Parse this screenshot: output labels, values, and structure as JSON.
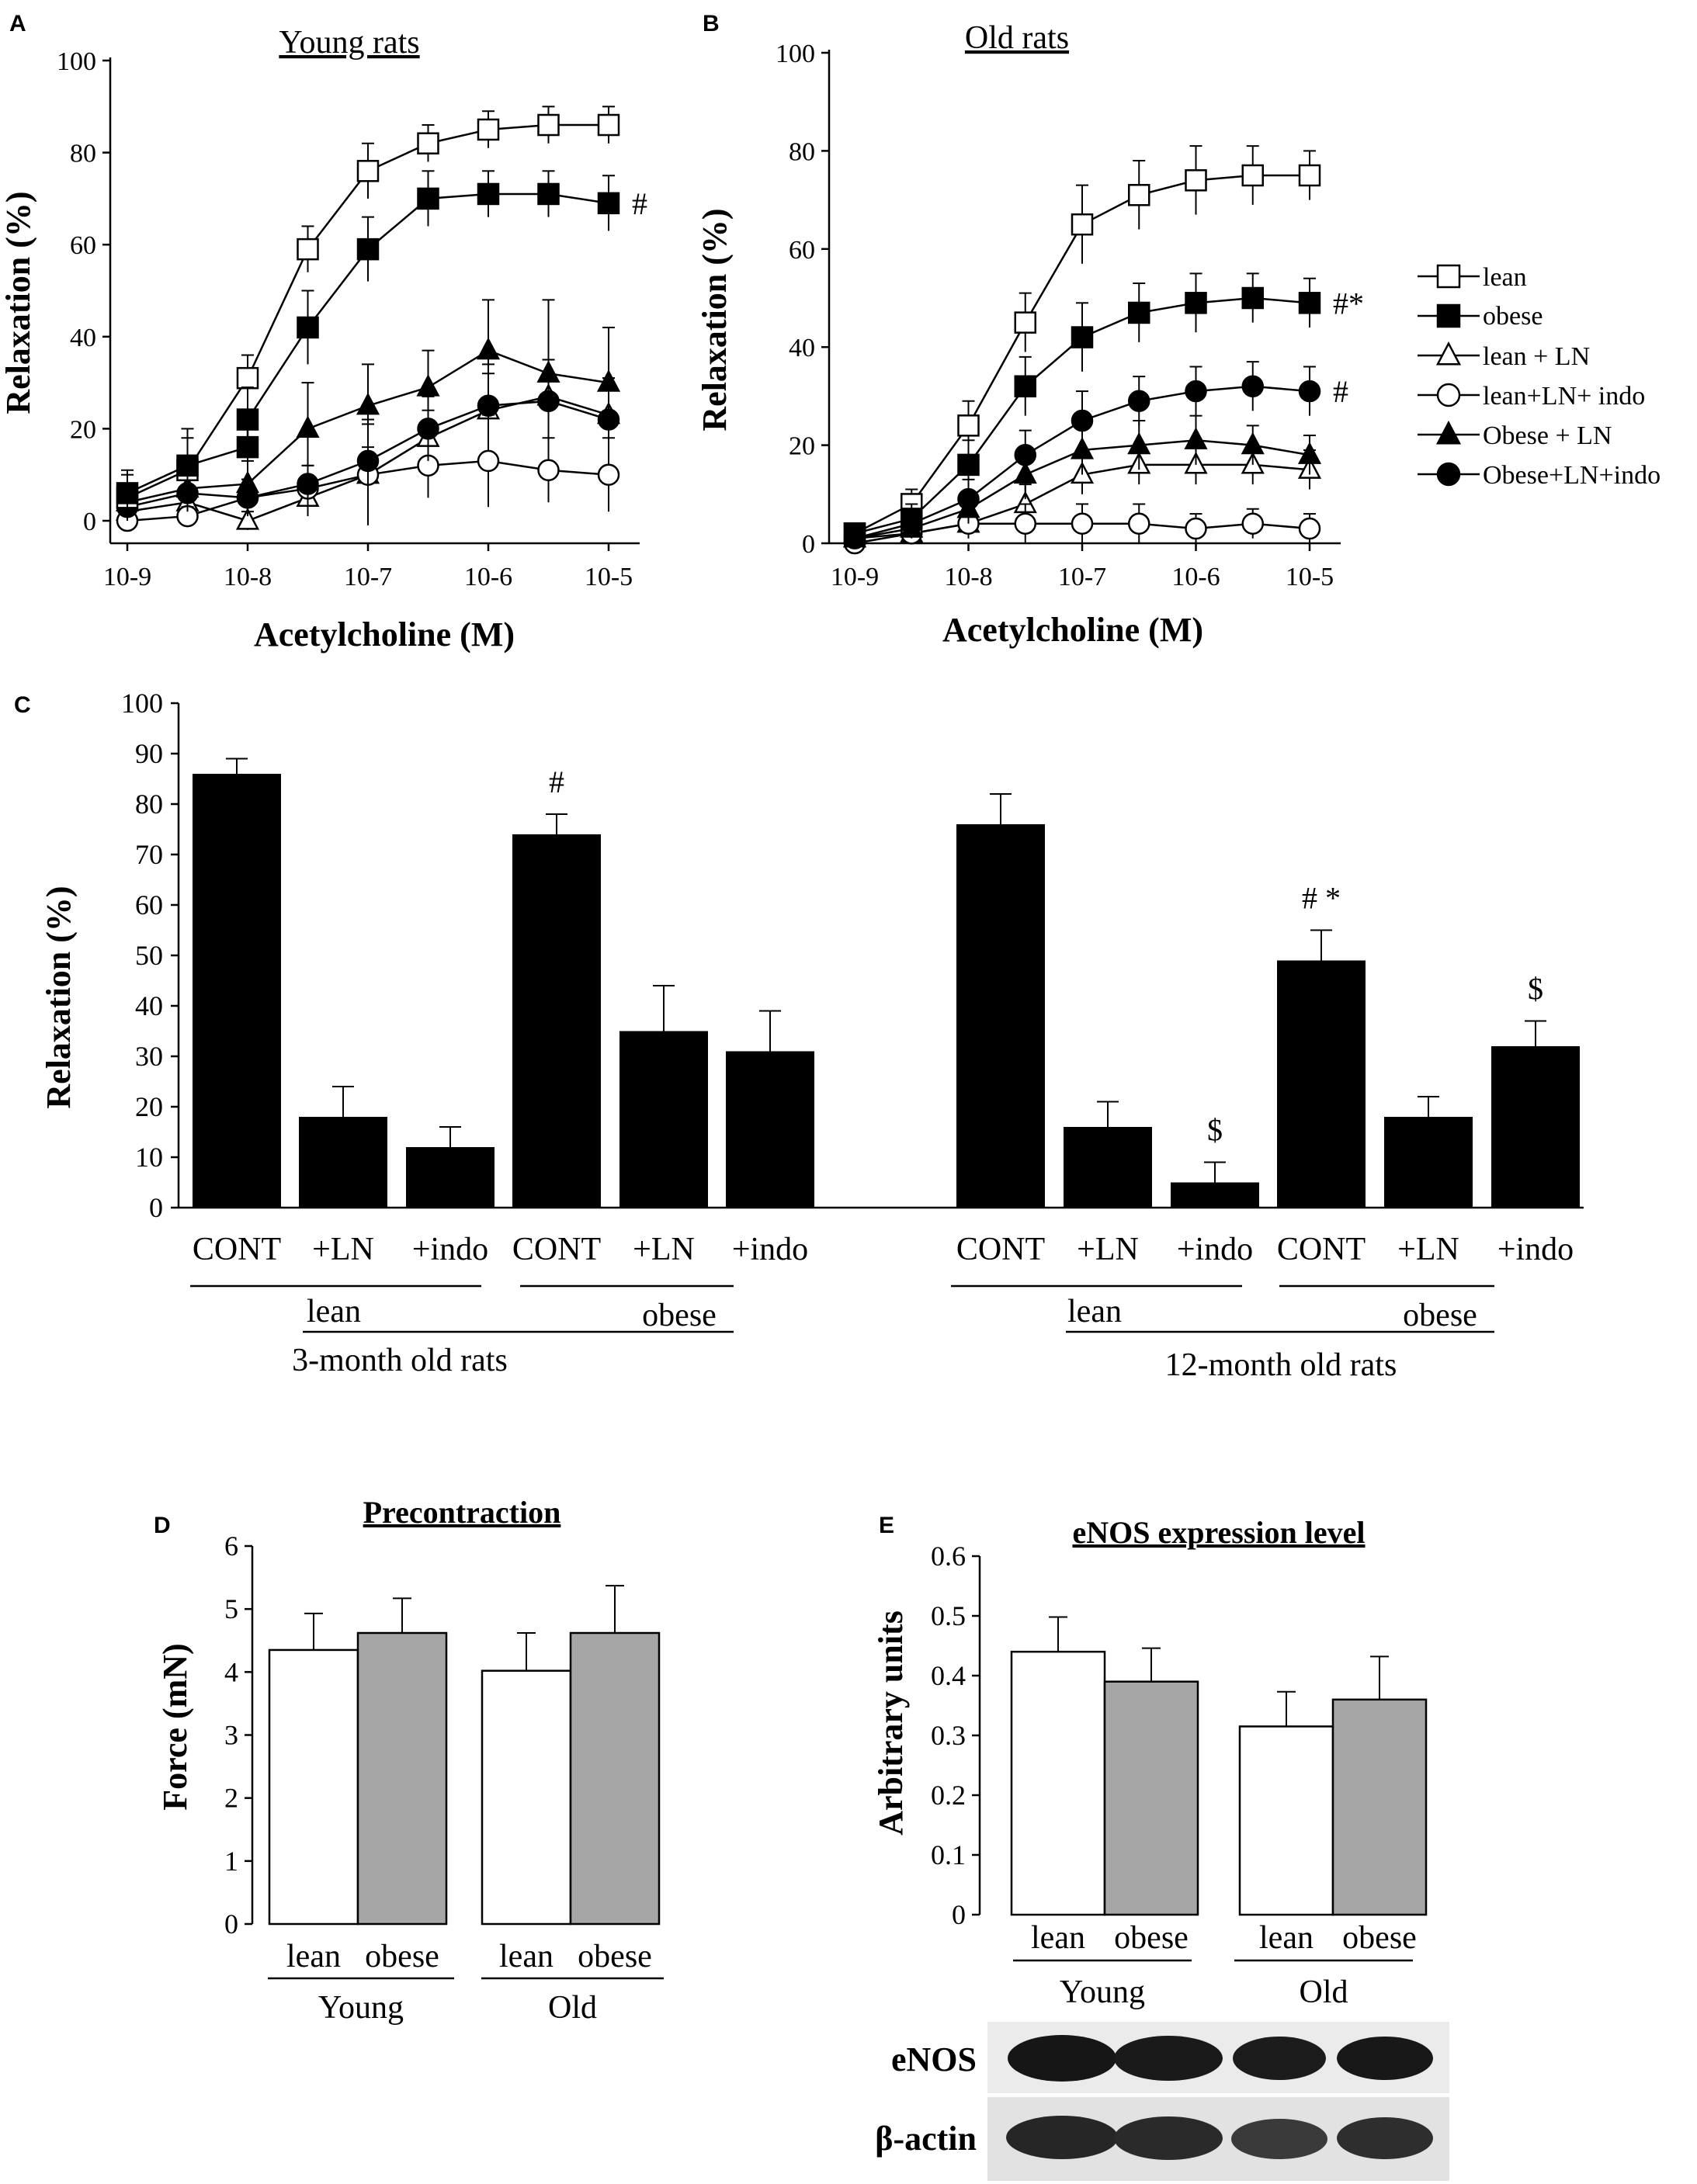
{
  "chart_data": [
    {
      "panel": "A",
      "type": "line",
      "title": "Young rats",
      "xlabel": "Acetylcholine (M)",
      "ylabel": "Relaxation (%)",
      "ylim": [
        0,
        100
      ],
      "yticks": [
        0,
        20,
        40,
        60,
        80,
        100
      ],
      "xtick_labels": [
        "10-9",
        "10-8",
        "10-7",
        "10-6",
        "10-5"
      ],
      "x": [
        -9,
        -8.5,
        -8,
        -7.5,
        -7,
        -6.5,
        -6,
        -5.5,
        -5
      ],
      "series": [
        {
          "name": "lean",
          "marker": "square-open",
          "values": [
            5,
            11,
            31,
            59,
            76,
            82,
            85,
            86,
            86
          ],
          "errors": [
            5,
            7,
            5,
            5,
            6,
            4,
            4,
            4,
            4
          ]
        },
        {
          "name": "obese",
          "marker": "square-filled",
          "values": [
            6,
            12,
            16,
            22,
            42,
            59,
            70,
            71,
            71,
            69
          ],
          "x": [
            -9,
            -8.5,
            -8,
            -8,
            -7.5,
            -7,
            -6.5,
            -6,
            -5.5,
            -5
          ],
          "errors": [
            5,
            8,
            6,
            7,
            8,
            7,
            6,
            5,
            5,
            6
          ],
          "annotation": "#"
        },
        {
          "name": "lean + LN",
          "marker": "triangle-open",
          "values": [
            2,
            4,
            0,
            5,
            10,
            18,
            24,
            27,
            23
          ],
          "errors": [
            2,
            3,
            2,
            4,
            6,
            6,
            8,
            8,
            8
          ]
        },
        {
          "name": "lean+LN+ indo",
          "marker": "circle-open",
          "values": [
            0,
            1,
            5,
            7,
            10,
            12,
            13,
            11,
            10
          ],
          "errors": [
            1,
            2,
            4,
            5,
            11,
            7,
            10,
            7,
            8
          ]
        },
        {
          "name": "Obese + LN",
          "marker": "triangle-filled",
          "values": [
            4,
            7,
            8,
            20,
            25,
            29,
            37,
            32,
            30
          ],
          "errors": [
            3,
            5,
            5,
            10,
            9,
            8,
            11,
            16,
            12
          ]
        },
        {
          "name": "Obese+LN+indo",
          "marker": "circle-filled",
          "values": [
            3,
            6,
            5,
            8,
            13,
            20,
            25,
            26,
            22
          ],
          "errors": [
            2,
            4,
            4,
            4,
            9,
            7,
            9,
            9,
            9
          ]
        }
      ]
    },
    {
      "panel": "B",
      "type": "line",
      "title": "Old rats",
      "xlabel": "Acetylcholine (M)",
      "ylabel": "Relaxation (%)",
      "ylim": [
        0,
        100
      ],
      "yticks": [
        0,
        20,
        40,
        60,
        80,
        100
      ],
      "xtick_labels": [
        "10-9",
        "10-8",
        "10-7",
        "10-6",
        "10-5"
      ],
      "x": [
        -9,
        -8.5,
        -8,
        -7.5,
        -7,
        -6.5,
        -6,
        -5.5,
        -5
      ],
      "series": [
        {
          "name": "lean",
          "marker": "square-open",
          "values": [
            2,
            8,
            24,
            45,
            65,
            71,
            74,
            75,
            75
          ],
          "errors": [
            2,
            3,
            5,
            6,
            8,
            7,
            7,
            6,
            5
          ]
        },
        {
          "name": "obese",
          "marker": "square-filled",
          "values": [
            2,
            5,
            16,
            32,
            42,
            47,
            49,
            50,
            49
          ],
          "errors": [
            2,
            3,
            5,
            6,
            7,
            6,
            6,
            5,
            5
          ],
          "annotation": "#*"
        },
        {
          "name": "lean + LN",
          "marker": "triangle-open",
          "values": [
            1,
            2,
            4,
            8,
            14,
            16,
            16,
            16,
            15
          ],
          "errors": [
            1,
            2,
            3,
            4,
            4,
            4,
            4,
            4,
            4
          ]
        },
        {
          "name": "lean+LN+ indo",
          "marker": "circle-open",
          "values": [
            0,
            2,
            4,
            4,
            4,
            4,
            3,
            4,
            3
          ],
          "errors": [
            1,
            2,
            3,
            4,
            4,
            4,
            3,
            3,
            3
          ]
        },
        {
          "name": "Obese + LN",
          "marker": "triangle-filled",
          "values": [
            1,
            3,
            7,
            14,
            19,
            20,
            21,
            20,
            18
          ],
          "errors": [
            1,
            2,
            3,
            5,
            5,
            5,
            5,
            4,
            4
          ]
        },
        {
          "name": "Obese+LN+indo",
          "marker": "circle-filled",
          "values": [
            1,
            4,
            9,
            18,
            25,
            29,
            31,
            32,
            31
          ],
          "errors": [
            1,
            2,
            4,
            5,
            6,
            5,
            5,
            5,
            5
          ],
          "annotation": "#"
        }
      ]
    },
    {
      "panel": "C",
      "type": "bar",
      "ylabel": "Relaxation (%)",
      "ylim": [
        0,
        100
      ],
      "yticks": [
        0,
        10,
        20,
        30,
        40,
        50,
        60,
        70,
        80,
        90,
        100
      ],
      "categories": [
        "CONT",
        "+LN",
        "+indo",
        "CONT",
        "+LN",
        "+indo",
        "CONT",
        "+LN",
        "+indo",
        "CONT",
        "+LN",
        "+indo"
      ],
      "values": [
        86,
        18,
        12,
        74,
        35,
        31,
        76,
        16,
        5,
        49,
        18,
        32
      ],
      "errors": [
        3,
        6,
        4,
        4,
        9,
        8,
        6,
        5,
        4,
        6,
        4,
        5
      ],
      "annotations": [
        "",
        "",
        "",
        "#",
        "",
        "",
        "",
        "",
        "$",
        "# *",
        "",
        "$"
      ],
      "group_labels": {
        "lean": "lean",
        "obese": "obese",
        "young": "3-month old rats",
        "old": "12-month old rats"
      }
    },
    {
      "panel": "D",
      "type": "bar",
      "title": "Precontraction",
      "ylabel": "Force (mN)",
      "ylim": [
        0,
        6
      ],
      "yticks": [
        0,
        1,
        2,
        3,
        4,
        5,
        6
      ],
      "categories": [
        "lean",
        "obese",
        "lean",
        "obese"
      ],
      "groups": [
        "Young",
        "Old"
      ],
      "values": [
        4.35,
        4.62,
        4.02,
        4.62
      ],
      "errors": [
        0.58,
        0.55,
        0.6,
        0.75
      ],
      "colors": [
        "#ffffff",
        "#a6a6a6",
        "#ffffff",
        "#a6a6a6"
      ]
    },
    {
      "panel": "E",
      "type": "bar",
      "title": "eNOS expression level",
      "ylabel": "Arbitrary units",
      "ylim": [
        0,
        0.6
      ],
      "yticks": [
        "0",
        "0.1",
        "0.2",
        "0.3",
        "0.4",
        "0.5",
        "0.6"
      ],
      "categories": [
        "lean",
        "obese",
        "lean",
        "obese"
      ],
      "groups": [
        "Young",
        "Old"
      ],
      "values": [
        0.44,
        0.39,
        0.315,
        0.36
      ],
      "errors": [
        0.058,
        0.056,
        0.058,
        0.072
      ],
      "colors": [
        "#ffffff",
        "#a6a6a6",
        "#ffffff",
        "#a6a6a6"
      ],
      "blot_labels": [
        "eNOS",
        "β-actin"
      ]
    }
  ],
  "legend": [
    "lean",
    "obese",
    "lean + LN",
    "lean+LN+ indo",
    "Obese + LN",
    "Obese+LN+indo"
  ],
  "panel_letters": [
    "A",
    "B",
    "C",
    "D",
    "E"
  ]
}
